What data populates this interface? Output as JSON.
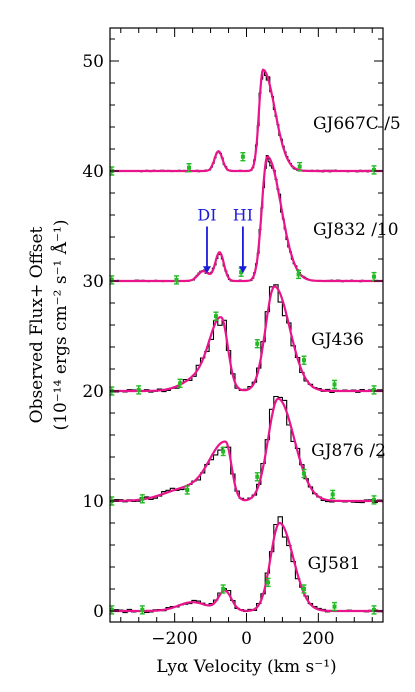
{
  "chart_data": {
    "type": "line",
    "xlabel": "Lyα Velocity (km s⁻¹)",
    "ylabel_line1": "Observed Flux+ Offset",
    "ylabel_line2": "(10⁻¹⁴ ergs cm⁻² s⁻¹ Å⁻¹)",
    "xlim": [
      -380,
      380
    ],
    "ylim": [
      -1,
      53
    ],
    "xticks": [
      -200,
      0,
      200
    ],
    "xtick_labels": [
      "−200",
      "0",
      "200"
    ],
    "yticks": [
      0,
      10,
      20,
      30,
      40,
      50
    ],
    "ytick_labels": [
      "0",
      "10",
      "20",
      "30",
      "40",
      "50"
    ],
    "colors": {
      "observed": "#000000",
      "model": "#e8148c",
      "points": "#22bb22",
      "annotation": "#1a1adc"
    },
    "annotations": [
      {
        "id": "di",
        "text": "DI",
        "x": -110,
        "y": 30.7,
        "label_y": 35.5
      },
      {
        "id": "hi",
        "text": "HI",
        "x": -10,
        "y": 30.7,
        "label_y": 35.5
      }
    ],
    "series": [
      {
        "name": "GJ667C /5",
        "offset": 40,
        "label_x": 185,
        "label_y": 43.8,
        "model_components": [
          {
            "center": 46,
            "amp": 9.2,
            "sigma_left": 11,
            "sigma_right": 33
          },
          {
            "center": -78,
            "amp": 1.8,
            "sigma_left": 11,
            "sigma_right": 11
          }
        ],
        "fit_points": [
          [
            -375,
            40.0
          ],
          [
            -160,
            40.3
          ],
          [
            -10,
            41.3
          ],
          [
            148,
            40.4
          ],
          [
            355,
            40.1
          ]
        ]
      },
      {
        "name": "GJ832 /10",
        "offset": 30,
        "label_x": 185,
        "label_y": 34.2,
        "model_components": [
          {
            "center": 58,
            "amp": 11.3,
            "sigma_left": 15,
            "sigma_right": 38
          },
          {
            "center": -75,
            "amp": 2.6,
            "sigma_left": 12,
            "sigma_right": 12
          },
          {
            "center": -120,
            "amp": 0.9,
            "sigma_left": 15,
            "sigma_right": 15
          }
        ],
        "fit_points": [
          [
            -375,
            30.1
          ],
          [
            -195,
            30.1
          ],
          [
            -15,
            30.8
          ],
          [
            145,
            30.6
          ],
          [
            355,
            30.4
          ]
        ]
      },
      {
        "name": "GJ436",
        "offset": 20,
        "label_x": 180,
        "label_y": 24.2,
        "model_components": [
          {
            "center": 78,
            "amp": 9.5,
            "sigma_left": 25,
            "sigma_right": 42
          },
          {
            "center": -70,
            "amp": 6.2,
            "sigma_left": 32,
            "sigma_right": 18
          },
          {
            "center": -130,
            "amp": 1.2,
            "sigma_left": 45,
            "sigma_right": 45
          }
        ],
        "fit_points": [
          [
            -375,
            20.0
          ],
          [
            -300,
            20.1
          ],
          [
            -185,
            20.7
          ],
          [
            -85,
            26.8
          ],
          [
            30,
            24.3
          ],
          [
            160,
            22.8
          ],
          [
            245,
            20.6
          ],
          [
            355,
            20.1
          ]
        ]
      },
      {
        "name": "GJ876 /2",
        "offset": 10,
        "label_x": 180,
        "label_y": 14.1,
        "model_components": [
          {
            "center": 88,
            "amp": 9.3,
            "sigma_left": 28,
            "sigma_right": 45
          },
          {
            "center": -58,
            "amp": 5.2,
            "sigma_left": 45,
            "sigma_right": 16
          },
          {
            "center": -170,
            "amp": 1.1,
            "sigma_left": 60,
            "sigma_right": 60
          }
        ],
        "fit_points": [
          [
            -375,
            10.0
          ],
          [
            -290,
            10.2
          ],
          [
            -165,
            11.0
          ],
          [
            -65,
            14.5
          ],
          [
            30,
            12.2
          ],
          [
            160,
            12.5
          ],
          [
            240,
            10.6
          ],
          [
            355,
            10.1
          ]
        ]
      },
      {
        "name": "GJ581",
        "offset": 0,
        "label_x": 170,
        "label_y": 3.8,
        "model_components": [
          {
            "center": 92,
            "amp": 8.0,
            "sigma_left": 25,
            "sigma_right": 38
          },
          {
            "center": -60,
            "amp": 1.8,
            "sigma_left": 18,
            "sigma_right": 18
          },
          {
            "center": -150,
            "amp": 0.8,
            "sigma_left": 40,
            "sigma_right": 40
          }
        ],
        "fit_points": [
          [
            -375,
            0.1
          ],
          [
            -290,
            0.1
          ],
          [
            -65,
            2.0
          ],
          [
            60,
            2.6
          ],
          [
            160,
            2.0
          ],
          [
            245,
            0.4
          ],
          [
            355,
            0.1
          ]
        ]
      }
    ]
  }
}
